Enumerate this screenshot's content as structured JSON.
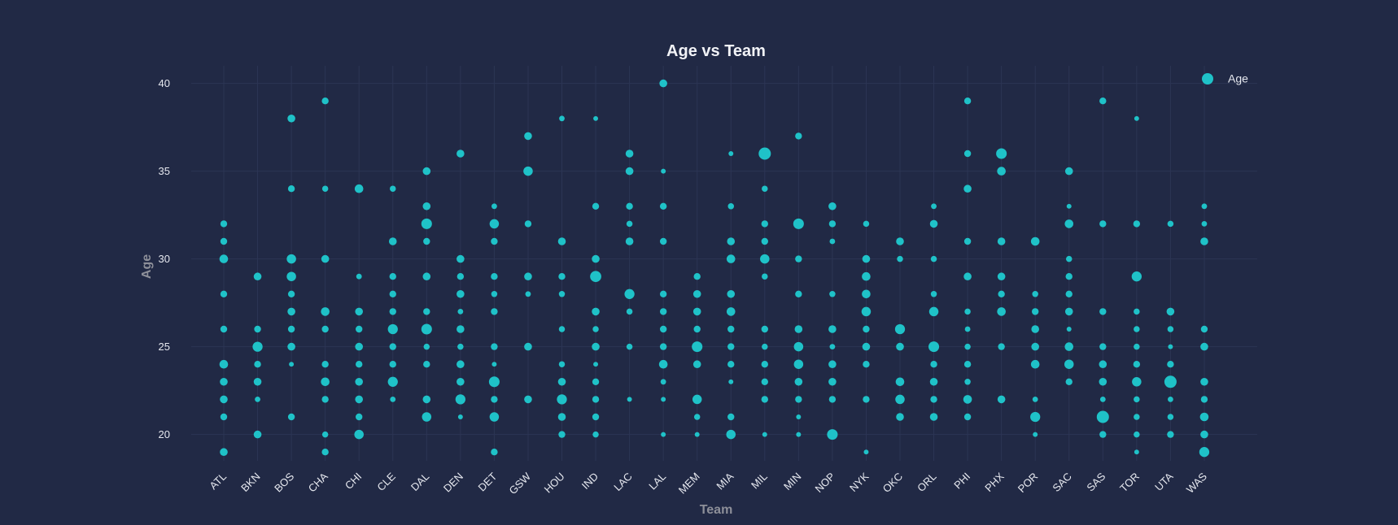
{
  "chart_data": {
    "type": "scatter",
    "title": "Age vs Team",
    "xlabel": "Team",
    "ylabel": "Age",
    "ylim": [
      18.5,
      41
    ],
    "yticks": [
      20,
      25,
      30,
      35,
      40
    ],
    "grid": true,
    "legend": {
      "position": "top-right",
      "label": "Age"
    },
    "marker_color": "#1fc2c8",
    "background_color": "#212945",
    "categories": [
      "ATL",
      "BKN",
      "BOS",
      "CHA",
      "CHI",
      "CLE",
      "DAL",
      "DEN",
      "DET",
      "GSW",
      "HOU",
      "IND",
      "LAC",
      "LAL",
      "MEM",
      "MIA",
      "MIL",
      "MIN",
      "NOP",
      "NYK",
      "OKC",
      "ORL",
      "PHI",
      "PHX",
      "POR",
      "SAC",
      "SAS",
      "TOR",
      "UTA",
      "WAS"
    ],
    "size_note": "marker size reflects number of players at that age",
    "points": [
      [
        "ATL",
        32,
        1
      ],
      [
        "ATL",
        31,
        1
      ],
      [
        "ATL",
        30,
        2
      ],
      [
        "ATL",
        28,
        1
      ],
      [
        "ATL",
        26,
        1
      ],
      [
        "ATL",
        24,
        2
      ],
      [
        "ATL",
        23,
        1.5
      ],
      [
        "ATL",
        22,
        1.5
      ],
      [
        "ATL",
        21,
        1
      ],
      [
        "ATL",
        19,
        1.5
      ],
      [
        "BKN",
        29,
        1.5
      ],
      [
        "BKN",
        26,
        1
      ],
      [
        "BKN",
        25,
        3
      ],
      [
        "BKN",
        24,
        1
      ],
      [
        "BKN",
        23,
        1.5
      ],
      [
        "BKN",
        22,
        0.5
      ],
      [
        "BKN",
        20,
        1.5
      ],
      [
        "BOS",
        38,
        1.5
      ],
      [
        "BOS",
        34,
        1
      ],
      [
        "BOS",
        30,
        2.5
      ],
      [
        "BOS",
        29,
        2.5
      ],
      [
        "BOS",
        28,
        1
      ],
      [
        "BOS",
        27,
        1.5
      ],
      [
        "BOS",
        26,
        1
      ],
      [
        "BOS",
        25,
        1.5
      ],
      [
        "BOS",
        24,
        0.3
      ],
      [
        "BOS",
        21,
        1
      ],
      [
        "CHA",
        39,
        1
      ],
      [
        "CHA",
        34,
        0.7
      ],
      [
        "CHA",
        30,
        1.5
      ],
      [
        "CHA",
        27,
        2
      ],
      [
        "CHA",
        26,
        1
      ],
      [
        "CHA",
        24,
        1
      ],
      [
        "CHA",
        23,
        2
      ],
      [
        "CHA",
        22,
        1
      ],
      [
        "CHA",
        20,
        0.7
      ],
      [
        "CHA",
        19,
        1
      ],
      [
        "CHI",
        34,
        2
      ],
      [
        "CHI",
        29,
        0.5
      ],
      [
        "CHI",
        27,
        1.5
      ],
      [
        "CHI",
        26,
        1
      ],
      [
        "CHI",
        25,
        1.5
      ],
      [
        "CHI",
        24,
        1
      ],
      [
        "CHI",
        23,
        1.5
      ],
      [
        "CHI",
        22,
        1.5
      ],
      [
        "CHI",
        21,
        1
      ],
      [
        "CHI",
        20,
        2.5
      ],
      [
        "CLE",
        34,
        0.7
      ],
      [
        "CLE",
        31,
        1.5
      ],
      [
        "CLE",
        29,
        1
      ],
      [
        "CLE",
        28,
        1
      ],
      [
        "CLE",
        27,
        1
      ],
      [
        "CLE",
        26,
        3
      ],
      [
        "CLE",
        25,
        1
      ],
      [
        "CLE",
        24,
        1
      ],
      [
        "CLE",
        23,
        3
      ],
      [
        "CLE",
        22,
        0.5
      ],
      [
        "DAL",
        35,
        1.5
      ],
      [
        "DAL",
        33,
        1.5
      ],
      [
        "DAL",
        32,
        3.5
      ],
      [
        "DAL",
        31,
        1
      ],
      [
        "DAL",
        29,
        1.5
      ],
      [
        "DAL",
        27,
        1
      ],
      [
        "DAL",
        26,
        3.5
      ],
      [
        "DAL",
        25,
        0.7
      ],
      [
        "DAL",
        24,
        1
      ],
      [
        "DAL",
        22,
        1.5
      ],
      [
        "DAL",
        21,
        2.5
      ],
      [
        "DEN",
        36,
        1.5
      ],
      [
        "DEN",
        30,
        1.5
      ],
      [
        "DEN",
        29,
        1
      ],
      [
        "DEN",
        28,
        1.5
      ],
      [
        "DEN",
        27,
        0.5
      ],
      [
        "DEN",
        26,
        1.5
      ],
      [
        "DEN",
        25,
        0.7
      ],
      [
        "DEN",
        24,
        1.5
      ],
      [
        "DEN",
        23,
        1.5
      ],
      [
        "DEN",
        22,
        3
      ],
      [
        "DEN",
        21,
        0.3
      ],
      [
        "DET",
        33,
        0.5
      ],
      [
        "DET",
        32,
        2.5
      ],
      [
        "DET",
        31,
        1
      ],
      [
        "DET",
        29,
        1
      ],
      [
        "DET",
        28,
        0.7
      ],
      [
        "DET",
        27,
        1
      ],
      [
        "DET",
        25,
        1
      ],
      [
        "DET",
        24,
        0.3
      ],
      [
        "DET",
        23,
        3.5
      ],
      [
        "DET",
        22,
        1
      ],
      [
        "DET",
        21,
        2.5
      ],
      [
        "DET",
        19,
        1
      ],
      [
        "GSW",
        37,
        1.5
      ],
      [
        "GSW",
        35,
        2.5
      ],
      [
        "GSW",
        32,
        1
      ],
      [
        "GSW",
        29,
        1.5
      ],
      [
        "GSW",
        28,
        0.5
      ],
      [
        "GSW",
        25,
        1.5
      ],
      [
        "GSW",
        22,
        1.5
      ],
      [
        "HOU",
        38,
        0.5
      ],
      [
        "HOU",
        31,
        1.5
      ],
      [
        "HOU",
        29,
        1
      ],
      [
        "HOU",
        28,
        0.7
      ],
      [
        "HOU",
        26,
        0.7
      ],
      [
        "HOU",
        24,
        0.7
      ],
      [
        "HOU",
        23,
        1.5
      ],
      [
        "HOU",
        22,
        3
      ],
      [
        "HOU",
        21,
        1.5
      ],
      [
        "HOU",
        20,
        1
      ],
      [
        "IND",
        38,
        0.3
      ],
      [
        "IND",
        33,
        1
      ],
      [
        "IND",
        30,
        1.5
      ],
      [
        "IND",
        29,
        4
      ],
      [
        "IND",
        27,
        1.5
      ],
      [
        "IND",
        26,
        0.7
      ],
      [
        "IND",
        25,
        1.5
      ],
      [
        "IND",
        24,
        0.3
      ],
      [
        "IND",
        23,
        1
      ],
      [
        "IND",
        22,
        1
      ],
      [
        "IND",
        21,
        1
      ],
      [
        "IND",
        20,
        0.7
      ],
      [
        "LAC",
        36,
        1.5
      ],
      [
        "LAC",
        35,
        1.5
      ],
      [
        "LAC",
        33,
        1
      ],
      [
        "LAC",
        32,
        0.7
      ],
      [
        "LAC",
        31,
        1.5
      ],
      [
        "LAC",
        28,
        3
      ],
      [
        "LAC",
        27,
        0.7
      ],
      [
        "LAC",
        25,
        0.7
      ],
      [
        "LAC",
        22,
        0.3
      ],
      [
        "LAL",
        40,
        1.5
      ],
      [
        "LAL",
        35,
        0.3
      ],
      [
        "LAL",
        33,
        1
      ],
      [
        "LAL",
        31,
        1
      ],
      [
        "LAL",
        28,
        1
      ],
      [
        "LAL",
        27,
        1
      ],
      [
        "LAL",
        26,
        1
      ],
      [
        "LAL",
        25,
        1
      ],
      [
        "LAL",
        24,
        2
      ],
      [
        "LAL",
        23,
        0.5
      ],
      [
        "LAL",
        22,
        0.3
      ],
      [
        "LAL",
        20,
        0.3
      ],
      [
        "MEM",
        29,
        1
      ],
      [
        "MEM",
        28,
        1.5
      ],
      [
        "MEM",
        27,
        1.5
      ],
      [
        "MEM",
        26,
        1
      ],
      [
        "MEM",
        25,
        3.5
      ],
      [
        "MEM",
        24,
        1.5
      ],
      [
        "MEM",
        22,
        2.5
      ],
      [
        "MEM",
        21,
        0.7
      ],
      [
        "MEM",
        20,
        0.3
      ],
      [
        "MIA",
        36,
        0.3
      ],
      [
        "MIA",
        33,
        0.7
      ],
      [
        "MIA",
        31,
        1.5
      ],
      [
        "MIA",
        30,
        2
      ],
      [
        "MIA",
        28,
        1.5
      ],
      [
        "MIA",
        27,
        2
      ],
      [
        "MIA",
        26,
        1
      ],
      [
        "MIA",
        25,
        1
      ],
      [
        "MIA",
        24,
        1
      ],
      [
        "MIA",
        23,
        0.3
      ],
      [
        "MIA",
        21,
        1
      ],
      [
        "MIA",
        20,
        2.5
      ],
      [
        "MIL",
        36,
        5
      ],
      [
        "MIL",
        34,
        0.7
      ],
      [
        "MIL",
        32,
        1
      ],
      [
        "MIL",
        31,
        1
      ],
      [
        "MIL",
        30,
        2.5
      ],
      [
        "MIL",
        29,
        0.7
      ],
      [
        "MIL",
        26,
        1
      ],
      [
        "MIL",
        25,
        0.7
      ],
      [
        "MIL",
        24,
        1
      ],
      [
        "MIL",
        23,
        1
      ],
      [
        "MIL",
        22,
        1
      ],
      [
        "MIL",
        20,
        0.3
      ],
      [
        "MIN",
        37,
        1
      ],
      [
        "MIN",
        32,
        3.5
      ],
      [
        "MIN",
        30,
        1
      ],
      [
        "MIN",
        28,
        1
      ],
      [
        "MIN",
        26,
        1.5
      ],
      [
        "MIN",
        25,
        2.5
      ],
      [
        "MIN",
        24,
        2.5
      ],
      [
        "MIN",
        23,
        1.5
      ],
      [
        "MIN",
        22,
        1
      ],
      [
        "MIN",
        21,
        0.3
      ],
      [
        "MIN",
        20,
        0.3
      ],
      [
        "NOP",
        33,
        1.5
      ],
      [
        "NOP",
        32,
        1
      ],
      [
        "NOP",
        31,
        0.5
      ],
      [
        "NOP",
        28,
        0.7
      ],
      [
        "NOP",
        26,
        1.5
      ],
      [
        "NOP",
        25,
        0.5
      ],
      [
        "NOP",
        24,
        1.5
      ],
      [
        "NOP",
        23,
        1.5
      ],
      [
        "NOP",
        22,
        1
      ],
      [
        "NOP",
        20,
        3.5
      ],
      [
        "NYK",
        32,
        0.7
      ],
      [
        "NYK",
        30,
        1.5
      ],
      [
        "NYK",
        29,
        2
      ],
      [
        "NYK",
        28,
        2
      ],
      [
        "NYK",
        27,
        2.5
      ],
      [
        "NYK",
        26,
        1
      ],
      [
        "NYK",
        25,
        1.5
      ],
      [
        "NYK",
        24,
        1
      ],
      [
        "NYK",
        22,
        1
      ],
      [
        "NYK",
        19,
        0.3
      ],
      [
        "OKC",
        31,
        1.5
      ],
      [
        "OKC",
        30,
        0.7
      ],
      [
        "OKC",
        26,
        3
      ],
      [
        "OKC",
        25,
        1.5
      ],
      [
        "OKC",
        23,
        2
      ],
      [
        "OKC",
        22,
        2.5
      ],
      [
        "OKC",
        21,
        1.5
      ],
      [
        "ORL",
        33,
        0.5
      ],
      [
        "ORL",
        32,
        1.5
      ],
      [
        "ORL",
        30,
        0.7
      ],
      [
        "ORL",
        28,
        0.7
      ],
      [
        "ORL",
        27,
        2.5
      ],
      [
        "ORL",
        25,
        3.5
      ],
      [
        "ORL",
        24,
        1
      ],
      [
        "ORL",
        23,
        1.5
      ],
      [
        "ORL",
        22,
        1
      ],
      [
        "ORL",
        21,
        1.5
      ],
      [
        "PHI",
        39,
        1
      ],
      [
        "PHI",
        36,
        1
      ],
      [
        "PHI",
        34,
        1.5
      ],
      [
        "PHI",
        31,
        1
      ],
      [
        "PHI",
        29,
        1.5
      ],
      [
        "PHI",
        27,
        0.7
      ],
      [
        "PHI",
        26,
        0.5
      ],
      [
        "PHI",
        25,
        0.7
      ],
      [
        "PHI",
        24,
        1
      ],
      [
        "PHI",
        23,
        0.7
      ],
      [
        "PHI",
        22,
        2
      ],
      [
        "PHI",
        21,
        1
      ],
      [
        "PHX",
        36,
        3.5
      ],
      [
        "PHX",
        35,
        2
      ],
      [
        "PHX",
        31,
        1.5
      ],
      [
        "PHX",
        29,
        1.5
      ],
      [
        "PHX",
        28,
        1
      ],
      [
        "PHX",
        27,
        2
      ],
      [
        "PHX",
        25,
        1
      ],
      [
        "PHX",
        22,
        1.5
      ],
      [
        "POR",
        31,
        2
      ],
      [
        "POR",
        28,
        0.7
      ],
      [
        "POR",
        27,
        1
      ],
      [
        "POR",
        26,
        1.5
      ],
      [
        "POR",
        25,
        1.5
      ],
      [
        "POR",
        24,
        2
      ],
      [
        "POR",
        22,
        0.5
      ],
      [
        "POR",
        21,
        3
      ],
      [
        "POR",
        20,
        0.3
      ],
      [
        "SAC",
        35,
        1.5
      ],
      [
        "SAC",
        33,
        0.3
      ],
      [
        "SAC",
        32,
        2
      ],
      [
        "SAC",
        30,
        0.7
      ],
      [
        "SAC",
        29,
        1
      ],
      [
        "SAC",
        28,
        1
      ],
      [
        "SAC",
        27,
        1.5
      ],
      [
        "SAC",
        26,
        0.3
      ],
      [
        "SAC",
        25,
        2
      ],
      [
        "SAC",
        24,
        2.5
      ],
      [
        "SAC",
        23,
        1
      ],
      [
        "SAS",
        39,
        1
      ],
      [
        "SAS",
        32,
        1
      ],
      [
        "SAS",
        27,
        1
      ],
      [
        "SAS",
        25,
        1
      ],
      [
        "SAS",
        24,
        1.5
      ],
      [
        "SAS",
        23,
        1.5
      ],
      [
        "SAS",
        22,
        0.5
      ],
      [
        "SAS",
        21,
        5
      ],
      [
        "SAS",
        20,
        1
      ],
      [
        "TOR",
        38,
        0.3
      ],
      [
        "TOR",
        32,
        1
      ],
      [
        "TOR",
        29,
        3
      ],
      [
        "TOR",
        27,
        0.7
      ],
      [
        "TOR",
        26,
        0.7
      ],
      [
        "TOR",
        25,
        0.7
      ],
      [
        "TOR",
        24,
        1
      ],
      [
        "TOR",
        23,
        2.5
      ],
      [
        "TOR",
        22,
        0.7
      ],
      [
        "TOR",
        21,
        0.7
      ],
      [
        "TOR",
        20,
        0.7
      ],
      [
        "TOR",
        19,
        0.3
      ],
      [
        "UTA",
        32,
        0.7
      ],
      [
        "UTA",
        27,
        1.5
      ],
      [
        "UTA",
        26,
        0.7
      ],
      [
        "UTA",
        25,
        0.3
      ],
      [
        "UTA",
        24,
        1
      ],
      [
        "UTA",
        23,
        5
      ],
      [
        "UTA",
        22,
        0.5
      ],
      [
        "UTA",
        21,
        0.7
      ],
      [
        "UTA",
        20,
        1
      ],
      [
        "WAS",
        33,
        0.5
      ],
      [
        "WAS",
        32,
        0.5
      ],
      [
        "WAS",
        31,
        1.5
      ],
      [
        "WAS",
        26,
        1
      ],
      [
        "WAS",
        25,
        1.5
      ],
      [
        "WAS",
        23,
        1.5
      ],
      [
        "WAS",
        22,
        1
      ],
      [
        "WAS",
        21,
        2
      ],
      [
        "WAS",
        20,
        1.5
      ],
      [
        "WAS",
        19,
        3
      ]
    ]
  }
}
